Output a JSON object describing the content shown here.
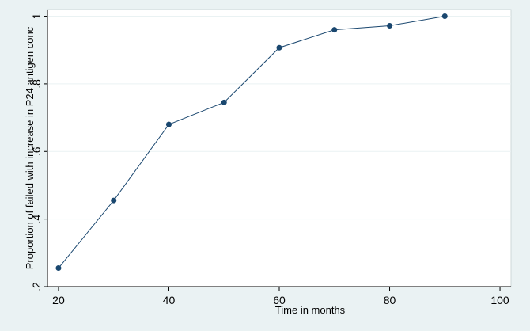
{
  "chart_data": {
    "type": "line",
    "title": "",
    "xlabel": "Time in months",
    "ylabel": "Proportion of failed with increase in P24 antigen conc",
    "x": [
      20,
      30,
      40,
      50,
      60,
      70,
      80,
      90
    ],
    "series": [
      {
        "values": [
          0.255,
          0.455,
          0.68,
          0.745,
          0.907,
          0.96,
          0.972,
          1.0
        ]
      }
    ],
    "xlim": [
      18,
      102
    ],
    "ylim": [
      0.2,
      1.02
    ],
    "x_ticks": [
      20,
      40,
      60,
      80,
      100
    ],
    "y_ticks": [
      0.2,
      0.4,
      0.6,
      0.8,
      1.0
    ],
    "x_tick_labels": [
      "20",
      "40",
      "60",
      "80",
      "100"
    ],
    "y_tick_labels": [
      ".2",
      ".4",
      ".6",
      ".8",
      "1"
    ],
    "grid": "horizontal",
    "legend": "none",
    "colors": {
      "line": "#1a476f",
      "marker": "#1a476f",
      "grid": "#eaf2f3",
      "plot_bg": "#ffffff",
      "frame_bg": "#eaf2f3"
    }
  }
}
